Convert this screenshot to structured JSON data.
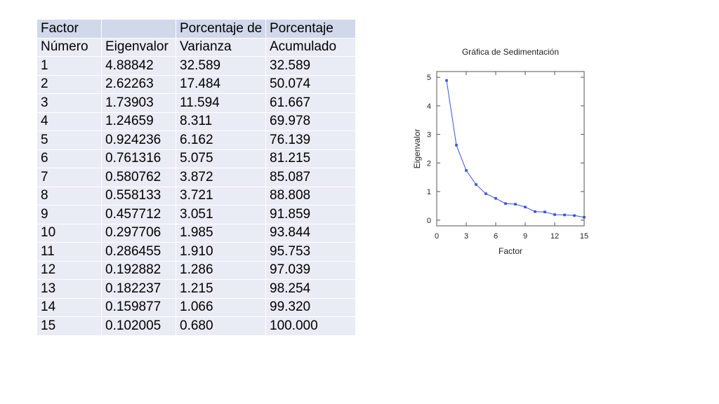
{
  "table": {
    "header_row1": [
      "Factor",
      "",
      "Porcentaje de",
      "Porcentaje"
    ],
    "header_row2": [
      "Número",
      "Eigenvalor",
      "Varianza",
      "Acumulado"
    ],
    "rows": [
      [
        "1",
        "4.88842",
        "32.589",
        "32.589"
      ],
      [
        "2",
        "2.62263",
        "17.484",
        "50.074"
      ],
      [
        "3",
        "1.73903",
        "11.594",
        "61.667"
      ],
      [
        "4",
        "1.24659",
        "8.311",
        "69.978"
      ],
      [
        "5",
        "0.924236",
        "6.162",
        "76.139"
      ],
      [
        "6",
        "0.761316",
        "5.075",
        "81.215"
      ],
      [
        "7",
        "0.580762",
        "3.872",
        "85.087"
      ],
      [
        "8",
        "0.558133",
        "3.721",
        "88.808"
      ],
      [
        "9",
        "0.457712",
        "3.051",
        "91.859"
      ],
      [
        "10",
        "0.297706",
        "1.985",
        "93.844"
      ],
      [
        "11",
        "0.286455",
        "1.910",
        "95.753"
      ],
      [
        "12",
        "0.192882",
        "1.286",
        "97.039"
      ],
      [
        "13",
        "0.182237",
        "1.215",
        "98.254"
      ],
      [
        "14",
        "0.159877",
        "1.066",
        "99.320"
      ],
      [
        "15",
        "0.102005",
        "0.680",
        "100.000"
      ]
    ]
  },
  "chart_data": {
    "type": "line",
    "title": "Gráfica de Sedimentación",
    "xlabel": "Factor",
    "ylabel": "Eigenvalor",
    "x": [
      1,
      2,
      3,
      4,
      5,
      6,
      7,
      8,
      9,
      10,
      11,
      12,
      13,
      14,
      15
    ],
    "series": [
      {
        "values": [
          4.88842,
          2.62263,
          1.73903,
          1.24659,
          0.924236,
          0.761316,
          0.580762,
          0.558133,
          0.457712,
          0.297706,
          0.286455,
          0.192882,
          0.182237,
          0.159877,
          0.102005
        ]
      }
    ],
    "xlim": [
      0,
      15
    ],
    "ylim": [
      -0.2,
      5.2
    ],
    "xticks": [
      "0",
      "3",
      "6",
      "9",
      "12",
      "15"
    ],
    "yticks": [
      "0",
      "1",
      "2",
      "3",
      "4",
      "5"
    ],
    "grid": false,
    "line_color": "#3a4fe0",
    "marker_color": "#3a4fe0"
  }
}
